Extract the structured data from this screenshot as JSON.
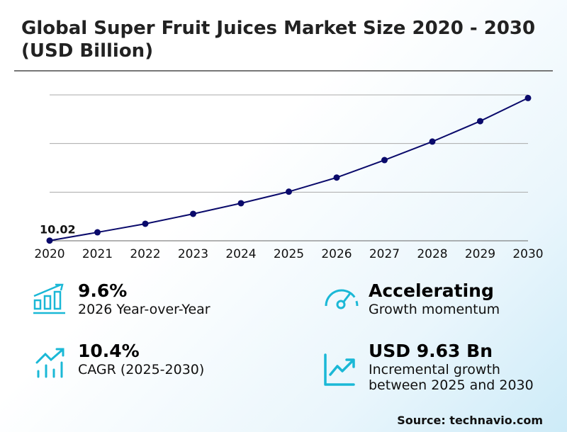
{
  "title": "Global Super Fruit Juices Market Size 2020 - 2030 (USD Billion)",
  "chart_data": {
    "type": "line",
    "title": "Global Super Fruit Juices Market Size 2020 - 2030 (USD Billion)",
    "xlabel": "",
    "ylabel": "",
    "categories": [
      "2020",
      "2021",
      "2022",
      "2023",
      "2024",
      "2025",
      "2026",
      "2027",
      "2028",
      "2029",
      "2030"
    ],
    "series": [
      {
        "name": "Market Size (USD Billion)",
        "values": [
          10.02,
          10.87,
          11.75,
          12.77,
          13.86,
          15.05,
          16.5,
          18.3,
          20.2,
          22.3,
          24.68
        ]
      }
    ],
    "data_labels": [
      {
        "index": 0,
        "text": "10.02"
      }
    ],
    "ylim": [
      10,
      25
    ],
    "grid_values": [
      10,
      15,
      20,
      25
    ],
    "grid": true,
    "line_color": "#0a0a6b"
  },
  "stats": [
    {
      "value": "9.6%",
      "label": "2026 Year-over-Year",
      "icon": "bar-chart-growth-icon"
    },
    {
      "value": "Accelerating",
      "label": "Growth momentum",
      "icon": "speedometer-icon"
    },
    {
      "value": "10.4%",
      "label": "CAGR (2025-2030)",
      "icon": "trend-bars-icon"
    },
    {
      "value": "USD 9.63 Bn",
      "label": "Incremental growth between 2025 and 2030",
      "icon": "line-chart-icon"
    }
  ],
  "source": "Source: technavio.com",
  "colors": {
    "accent": "#1ab8d6",
    "line": "#0a0a6b"
  }
}
